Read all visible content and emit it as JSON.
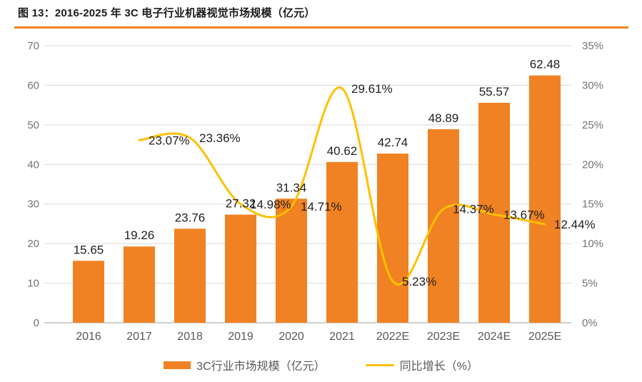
{
  "header": {
    "title": "图 13：2016-2025 年 3C 电子行业机器视觉市场规模（亿元）"
  },
  "legend": {
    "bar_label": "3C行业市场规模（亿元）",
    "line_label": "同比增长（%）"
  },
  "colors": {
    "bar": "#F08223",
    "line": "#FFC000",
    "grid": "#D9D9D9",
    "baseline": "#BFBFBF",
    "axis_text": "#737373",
    "x_text": "#595959",
    "label_text": "#1F1F1F",
    "title_rule": "#F08223"
  },
  "chart_data": {
    "type": "bar",
    "subtype": "bar+line-combo",
    "title": "图 13：2016-2025 年 3C 电子行业机器视觉市场规模（亿元）",
    "categories": [
      "2016",
      "2017",
      "2018",
      "2019",
      "2020",
      "2021",
      "2022E",
      "2023E",
      "2024E",
      "2025E"
    ],
    "series": [
      {
        "name": "3C行业市场规模（亿元）",
        "type": "bar",
        "axis": "left",
        "values": [
          15.65,
          19.26,
          23.76,
          27.32,
          31.34,
          40.62,
          42.74,
          48.89,
          55.57,
          62.48
        ],
        "labels": [
          "15.65",
          "19.26",
          "23.76",
          "27.32",
          "31.34",
          "40.62",
          "42.74",
          "48.89",
          "55.57",
          "62.48"
        ]
      },
      {
        "name": "同比增长（%）",
        "type": "line",
        "axis": "right",
        "values": [
          null,
          23.07,
          23.36,
          14.98,
          14.71,
          29.61,
          5.23,
          14.37,
          13.67,
          12.44
        ],
        "labels": [
          null,
          "23.07%",
          "23.36%",
          "14.98%",
          "14.71%",
          "29.61%",
          "5.23%",
          "14.37%",
          "13.67%",
          "12.44%"
        ]
      }
    ],
    "left_axis": {
      "min": 0,
      "max": 70,
      "step": 10,
      "tick_labels": [
        "0",
        "10",
        "20",
        "30",
        "40",
        "50",
        "60",
        "70"
      ]
    },
    "right_axis": {
      "min": 0,
      "max": 35,
      "step": 5,
      "tick_labels": [
        "0%",
        "5%",
        "10%",
        "15%",
        "20%",
        "25%",
        "30%",
        "35%"
      ]
    },
    "grid": true,
    "legend_position": "bottom"
  }
}
